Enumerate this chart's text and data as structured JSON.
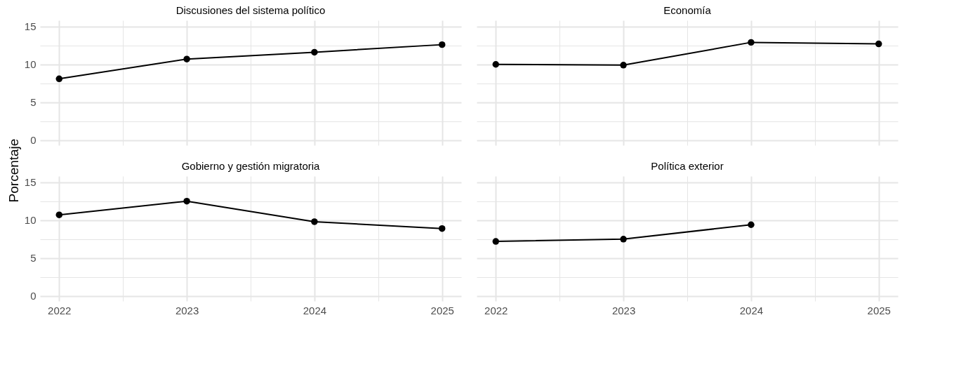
{
  "chart_data": [
    {
      "type": "line",
      "title": "Discusiones del sistema político",
      "ylabel": "Porcentaje",
      "x": [
        2022,
        2023,
        2024,
        2025
      ],
      "values": [
        8.1,
        10.7,
        11.6,
        12.6
      ],
      "color": "#000000",
      "marker": "circle",
      "line_style": "solid",
      "xlim": [
        2021.85,
        2025.15
      ],
      "ylim": [
        -0.65,
        15.8
      ],
      "xticks": [
        2022,
        {
          "value": 2022.5,
          "label": null
        },
        2023,
        {
          "value": 2023.5,
          "label": null
        },
        2024,
        {
          "value": 2024.5,
          "label": null
        },
        2025
      ],
      "yticks": [
        0,
        {
          "value": 2.5,
          "label": null
        },
        5,
        {
          "value": 7.5,
          "label": null
        },
        10,
        {
          "value": 12.5,
          "label": null
        },
        15
      ],
      "grid": true,
      "tick_labels": "y"
    },
    {
      "type": "line",
      "title": "Economía",
      "x": [
        2022,
        2023,
        2024,
        2025
      ],
      "values": [
        10.0,
        9.9,
        12.9,
        12.7
      ],
      "color": "#000000",
      "marker": "circle",
      "line_style": "solid",
      "xlim": [
        2021.85,
        2025.15
      ],
      "ylim": [
        -0.65,
        15.8
      ],
      "xticks": [
        2022,
        {
          "value": 2022.5,
          "label": null
        },
        2023,
        {
          "value": 2023.5,
          "label": null
        },
        2024,
        {
          "value": 2024.5,
          "label": null
        },
        2025
      ],
      "yticks": [
        0,
        {
          "value": 2.5,
          "label": null
        },
        5,
        {
          "value": 7.5,
          "label": null
        },
        10,
        {
          "value": 12.5,
          "label": null
        },
        15
      ],
      "grid": true,
      "tick_labels": false
    },
    {
      "type": "line",
      "title": "Gobierno y gestión migratoria",
      "x": [
        2022,
        2023,
        2024,
        2025
      ],
      "values": [
        10.7,
        12.5,
        9.8,
        8.9
      ],
      "color": "#000000",
      "marker": "circle",
      "line_style": "solid",
      "xlim": [
        2021.85,
        2025.15
      ],
      "ylim": [
        -0.65,
        15.8
      ],
      "xticks": [
        2022,
        {
          "value": 2022.5,
          "label": null
        },
        2023,
        {
          "value": 2023.5,
          "label": null
        },
        2024,
        {
          "value": 2024.5,
          "label": null
        },
        2025
      ],
      "yticks": [
        0,
        {
          "value": 2.5,
          "label": null
        },
        5,
        {
          "value": 7.5,
          "label": null
        },
        10,
        {
          "value": 12.5,
          "label": null
        },
        15
      ],
      "grid": true
    },
    {
      "type": "line",
      "title": "Política exterior",
      "x": [
        2022,
        2023,
        2024
      ],
      "values": [
        7.2,
        7.5,
        9.4
      ],
      "color": "#000000",
      "marker": "circle",
      "line_style": "solid",
      "xlim": [
        2021.85,
        2025.15
      ],
      "ylim": [
        -0.65,
        15.8
      ],
      "xticks": [
        2022,
        {
          "value": 2022.5,
          "label": null
        },
        2023,
        {
          "value": 2023.5,
          "label": null
        },
        2024,
        {
          "value": 2024.5,
          "label": null
        },
        2025
      ],
      "yticks": [
        0,
        {
          "value": 2.5,
          "label": null
        },
        5,
        {
          "value": 7.5,
          "label": null
        },
        10,
        {
          "value": 12.5,
          "label": null
        },
        15
      ],
      "grid": true,
      "tick_labels": "x"
    }
  ]
}
